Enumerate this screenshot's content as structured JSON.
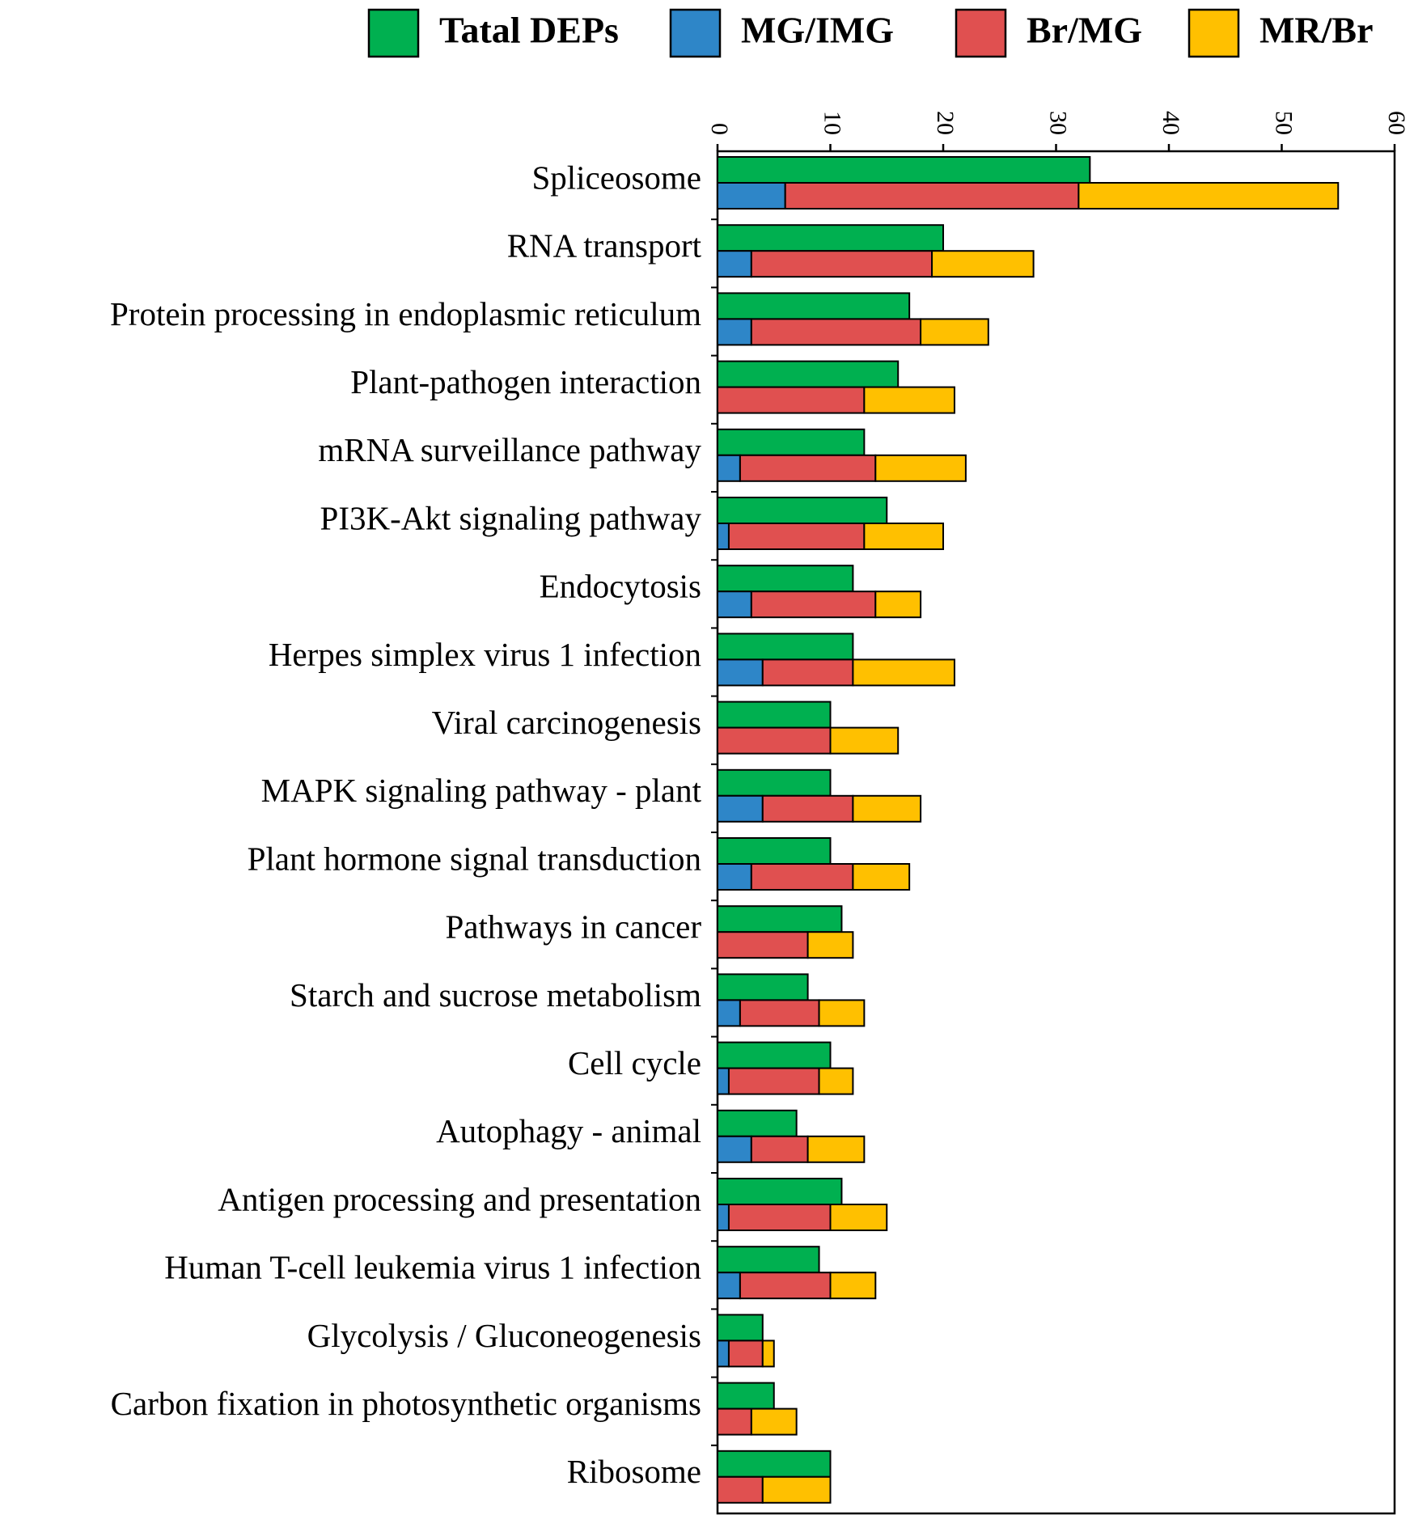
{
  "chart_data": {
    "type": "bar",
    "orientation": "horizontal",
    "stacked_series_second_row": true,
    "xlim": [
      0,
      60
    ],
    "xticks": [
      0,
      10,
      20,
      30,
      40,
      50,
      60
    ],
    "x_axis_position": "top",
    "legend_position": "top-right",
    "categories": [
      "Spliceosome",
      "RNA transport",
      "Protein processing in endoplasmic reticulum",
      "Plant-pathogen interaction",
      "mRNA surveillance pathway",
      "PI3K-Akt signaling pathway",
      "Endocytosis",
      "Herpes simplex virus 1 infection",
      "Viral carcinogenesis",
      "MAPK signaling pathway - plant",
      "Plant hormone signal transduction",
      "Pathways in cancer",
      "Starch and sucrose metabolism",
      "Cell cycle",
      "Autophagy - animal",
      "Antigen processing and presentation",
      "Human T-cell leukemia virus 1 infection",
      "Glycolysis / Gluconeogenesis",
      "Carbon fixation in photosynthetic organisms",
      "Ribosome"
    ],
    "series": [
      {
        "name": "Tatal DEPs",
        "color": "#00b050",
        "values": [
          33,
          20,
          17,
          16,
          13,
          15,
          12,
          12,
          10,
          10,
          10,
          11,
          8,
          10,
          7,
          11,
          9,
          4,
          5,
          10
        ]
      },
      {
        "name": "MG/IMG",
        "color": "#2e86c8",
        "values": [
          6,
          3,
          3,
          0,
          2,
          1,
          3,
          4,
          0,
          4,
          3,
          0,
          2,
          1,
          3,
          1,
          2,
          1,
          0,
          0
        ]
      },
      {
        "name": "Br/MG",
        "color": "#e05050",
        "values": [
          26,
          16,
          15,
          13,
          12,
          12,
          11,
          8,
          10,
          8,
          9,
          8,
          7,
          8,
          5,
          9,
          8,
          3,
          3,
          4
        ]
      },
      {
        "name": "MR/Br",
        "color": "#ffc000",
        "values": [
          23,
          9,
          6,
          8,
          8,
          7,
          4,
          9,
          6,
          6,
          5,
          4,
          4,
          3,
          5,
          5,
          4,
          1,
          4,
          6
        ]
      }
    ]
  }
}
